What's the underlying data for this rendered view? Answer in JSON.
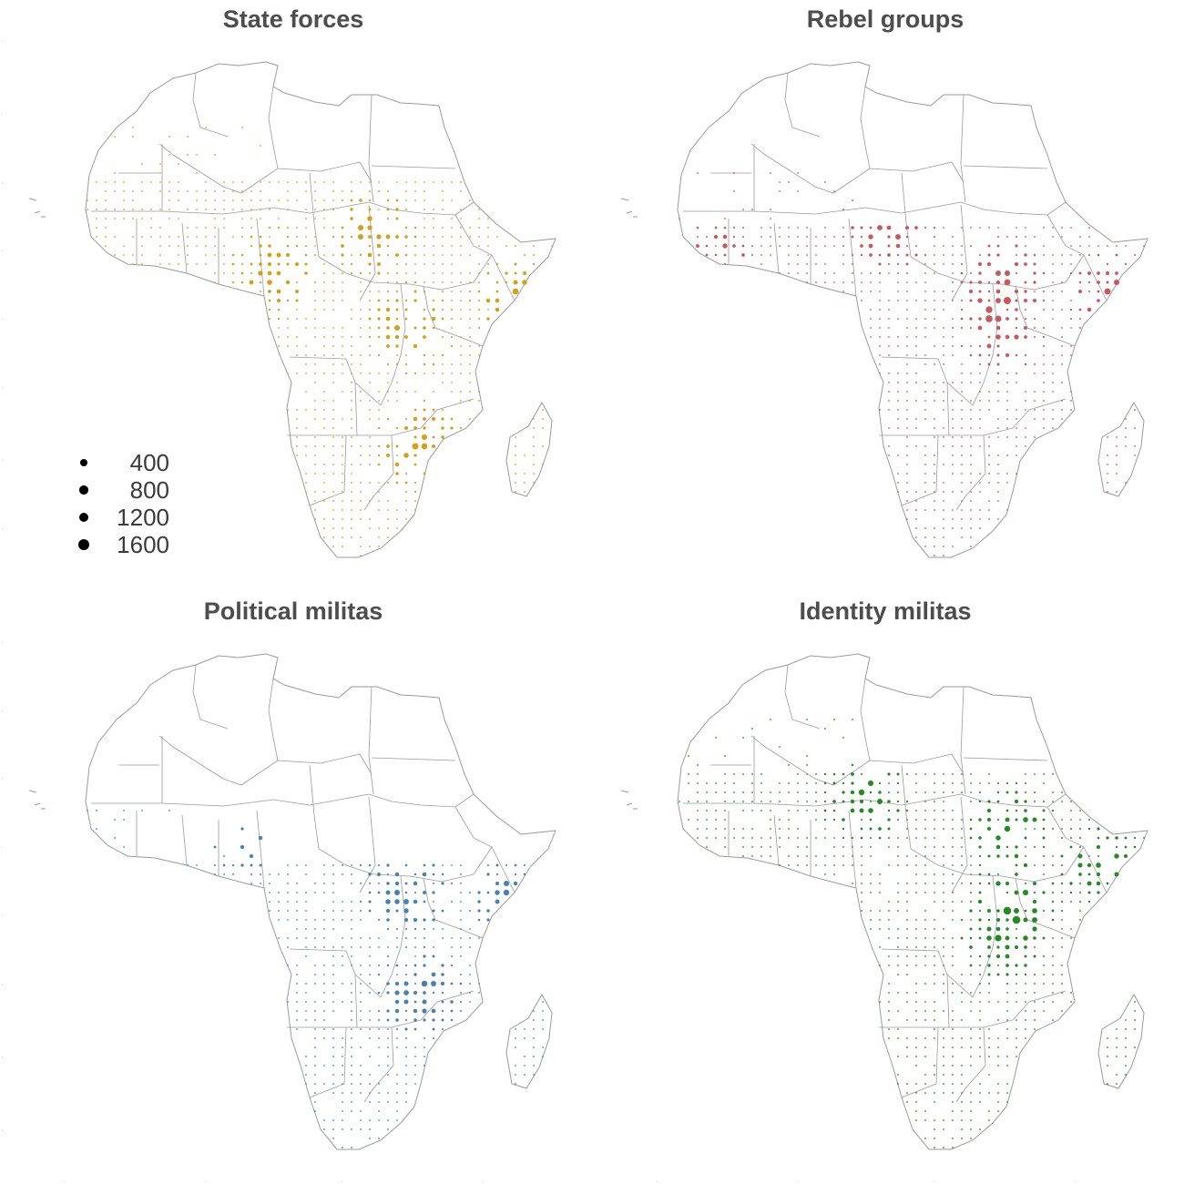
{
  "panels": [
    {
      "title": "State forces",
      "color": "#D4A017"
    },
    {
      "title": "Rebel groups",
      "color": "#C8585C"
    },
    {
      "title": "Political militas",
      "color": "#4682B4"
    },
    {
      "title": "Identity militas",
      "color": "#228B22"
    }
  ],
  "legend": {
    "items": [
      {
        "label": "400",
        "value": 400
      },
      {
        "label": "800",
        "value": 800
      },
      {
        "label": "1200",
        "value": 1200
      },
      {
        "label": "1600",
        "value": 1600
      }
    ]
  },
  "map": {
    "land_color": "#ffffff",
    "border_color": "#9a9a9a",
    "region": "Africa"
  }
}
